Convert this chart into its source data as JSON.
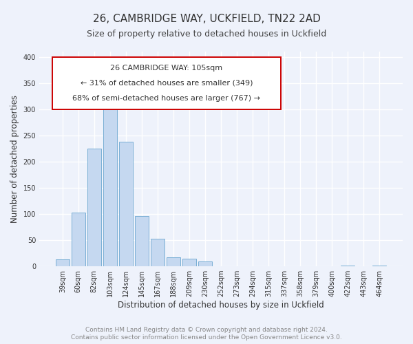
{
  "title": "26, CAMBRIDGE WAY, UCKFIELD, TN22 2AD",
  "subtitle": "Size of property relative to detached houses in Uckfield",
  "xlabel": "Distribution of detached houses by size in Uckfield",
  "ylabel": "Number of detached properties",
  "bar_labels": [
    "39sqm",
    "60sqm",
    "82sqm",
    "103sqm",
    "124sqm",
    "145sqm",
    "167sqm",
    "188sqm",
    "209sqm",
    "230sqm",
    "252sqm",
    "273sqm",
    "294sqm",
    "315sqm",
    "337sqm",
    "358sqm",
    "379sqm",
    "400sqm",
    "422sqm",
    "443sqm",
    "464sqm"
  ],
  "bar_values": [
    13,
    103,
    225,
    320,
    238,
    96,
    53,
    17,
    14,
    9,
    0,
    0,
    0,
    0,
    0,
    0,
    0,
    0,
    2,
    0,
    2
  ],
  "bar_color": "#c5d8f0",
  "bar_edge_color": "#7aafd4",
  "ylim": [
    0,
    410
  ],
  "yticks": [
    0,
    50,
    100,
    150,
    200,
    250,
    300,
    350,
    400
  ],
  "annotation_title": "26 CAMBRIDGE WAY: 105sqm",
  "annotation_line1": "← 31% of detached houses are smaller (349)",
  "annotation_line2": "68% of semi-detached houses are larger (767) →",
  "annotation_color": "#cc0000",
  "footer_line1": "Contains HM Land Registry data © Crown copyright and database right 2024.",
  "footer_line2": "Contains public sector information licensed under the Open Government Licence v3.0.",
  "bg_color": "#eef2fb",
  "grid_color": "#ffffff",
  "title_fontsize": 11,
  "subtitle_fontsize": 9,
  "axis_label_fontsize": 8.5,
  "tick_fontsize": 7,
  "annot_fontsize": 8,
  "footer_fontsize": 6.5
}
